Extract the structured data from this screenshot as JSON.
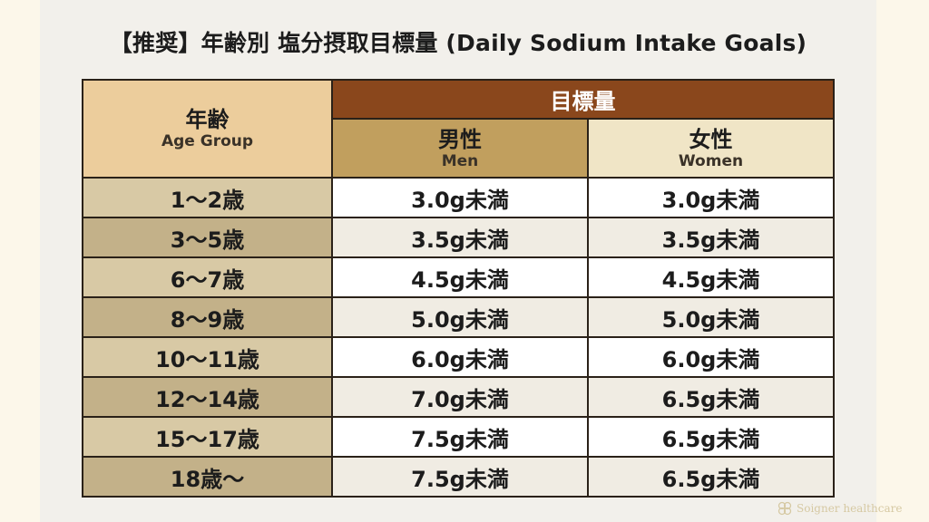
{
  "title": "【推奨】年齢別 塩分摂取目標量 (Daily Sodium Intake Goals)",
  "header": {
    "age_ja": "年齢",
    "age_en": "Age Group",
    "goal": "目標量",
    "men_ja": "男性",
    "men_en": "Men",
    "women_ja": "女性",
    "women_en": "Women"
  },
  "rows": [
    {
      "age": "1〜2歳",
      "men": "3.0g未満",
      "women": "3.0g未満"
    },
    {
      "age": "3〜5歳",
      "men": "3.5g未満",
      "women": "3.5g未満"
    },
    {
      "age": "6〜7歳",
      "men": "4.5g未満",
      "women": "4.5g未満"
    },
    {
      "age": "8〜9歳",
      "men": "5.0g未満",
      "women": "5.0g未満"
    },
    {
      "age": "10〜11歳",
      "men": "6.0g未満",
      "women": "6.0g未満"
    },
    {
      "age": "12〜14歳",
      "men": "7.0g未満",
      "women": "6.5g未満"
    },
    {
      "age": "15〜17歳",
      "men": "7.5g未満",
      "women": "6.5g未満"
    },
    {
      "age": "18歳〜",
      "men": "7.5g未満",
      "women": "6.5g未満"
    }
  ],
  "watermark": "Soigner healthcare",
  "colors": {
    "goal_header": "#8a471c",
    "men_header": "#c19f5e",
    "women_header": "#f0e5c6",
    "age_header": "#eccd9c"
  }
}
